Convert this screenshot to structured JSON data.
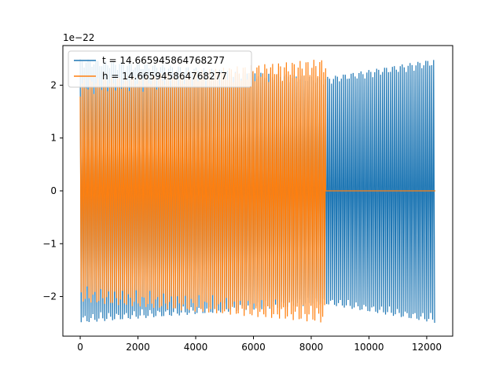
{
  "chart_data": {
    "type": "line",
    "title": "",
    "xlabel": "",
    "ylabel": "",
    "y_offset_label": "1e−22",
    "xlim": [
      -600,
      12900
    ],
    "ylim": [
      -2.75,
      2.75
    ],
    "x_ticks": [
      0,
      2000,
      4000,
      6000,
      8000,
      10000,
      12000
    ],
    "x_tick_labels": [
      "0",
      "2000",
      "4000",
      "6000",
      "8000",
      "10000",
      "12000"
    ],
    "y_ticks": [
      -2,
      -1,
      0,
      1,
      2
    ],
    "y_tick_labels": [
      "−2",
      "−1",
      "0",
      "1",
      "2"
    ],
    "grid": false,
    "legend_position": "upper-left",
    "series": [
      {
        "name": "t = 14.665945864768277",
        "color": "#1f77b4",
        "x_range": [
          0,
          12300
        ],
        "amplitude_start": 2.5,
        "amplitude_min": 2.15,
        "amplitude_min_at": 8500,
        "amplitude_end": 2.5,
        "baseline": 0
      },
      {
        "name": "h = 14.665945864768277",
        "color": "#ff7f0e",
        "x_range": [
          0,
          12300
        ],
        "oscillation_range": [
          0,
          8500
        ],
        "amplitude_start": 2.1,
        "amplitude_end": 2.5,
        "baseline": 0
      }
    ]
  }
}
